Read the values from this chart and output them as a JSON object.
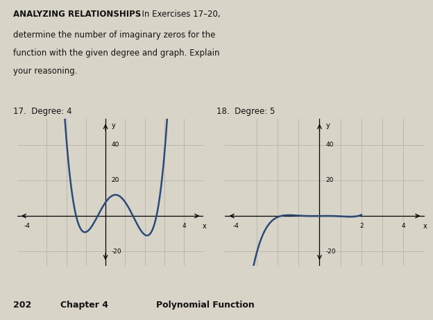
{
  "bg_color": "#d8d4c8",
  "text_color": "#111111",
  "header_bold": "ANALYZING RELATIONSHIPS",
  "header_rest": "  In Exercises 17–20,",
  "header_line2": "determine the number of imaginary zeros for the",
  "header_line3": "function with the given degree and graph. Explain",
  "header_line4": "your reasoning.",
  "label17": "17.  Degree: 4",
  "label18": "18.  Degree: 5",
  "footer_num": "202",
  "footer_ch": "Chapter 4",
  "footer_title": "Polynomial Function",
  "graph1": {
    "xlim": [
      -4.5,
      5.0
    ],
    "ylim": [
      -28,
      55
    ],
    "curve_color": "#2a4a7a",
    "grid_color": "#b0aca0",
    "curve_x_start": -3.5,
    "curve_x_end": 4.2
  },
  "graph2": {
    "xlim": [
      -4.5,
      5.0
    ],
    "ylim": [
      -28,
      55
    ],
    "curve_color": "#2a4a7a",
    "grid_color": "#b0aca0",
    "curve_x_start": -3.8,
    "curve_x_end": 2.2
  }
}
